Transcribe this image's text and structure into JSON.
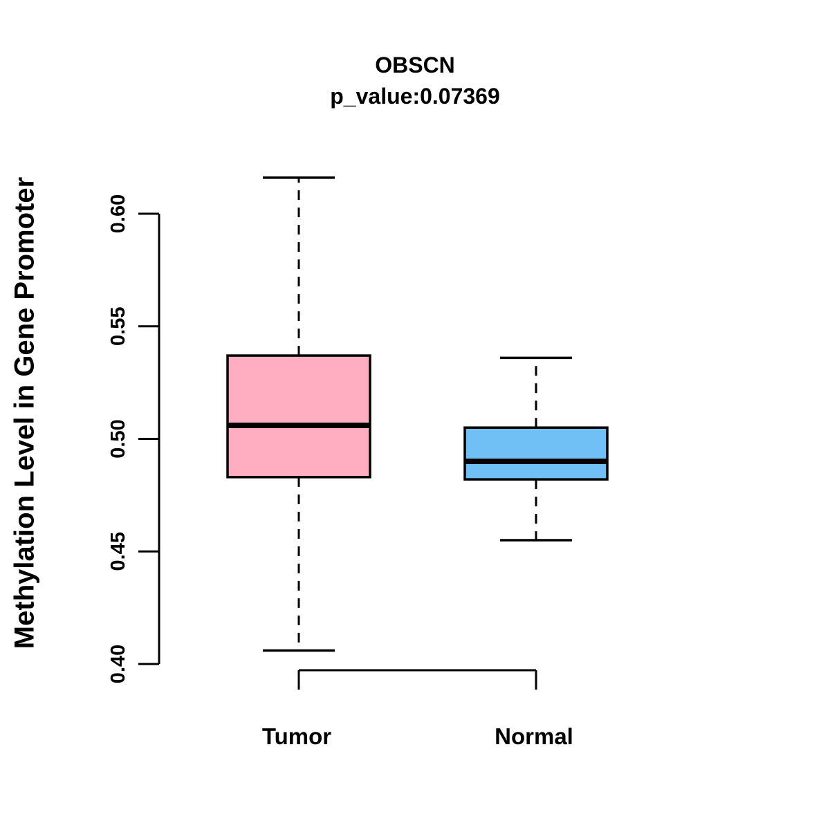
{
  "title": "OBSCN",
  "subtitle": "p_value:0.07369",
  "y_axis_label": "Methylation Level in Gene Promoter",
  "colors": {
    "tumor_fill": "#FFAEC1",
    "normal_fill": "#70BFF5",
    "line": "#000000",
    "background": "#FFFFFF"
  },
  "chart_data": {
    "type": "boxplot",
    "title": "OBSCN",
    "subtitle": "p_value:0.07369",
    "xlabel": "",
    "ylabel": "Methylation Level in Gene Promoter",
    "ylim": [
      0.39,
      0.62
    ],
    "axis_range": [
      0.4,
      0.6
    ],
    "grid": false,
    "legend": "none",
    "yticks": [
      {
        "label": "0.40",
        "value": 0.4
      },
      {
        "label": "0.45",
        "value": 0.45
      },
      {
        "label": "0.50",
        "value": 0.5
      },
      {
        "label": "0.55",
        "value": 0.55
      },
      {
        "label": "0.60",
        "value": 0.6
      }
    ],
    "groups": [
      {
        "label": "Tumor",
        "fill": "#FFAEC1",
        "whisker_low": 0.406,
        "q1": 0.483,
        "median": 0.506,
        "q3": 0.537,
        "whisker_high": 0.616
      },
      {
        "label": "Normal",
        "fill": "#70BFF5",
        "whisker_low": 0.455,
        "q1": 0.482,
        "median": 0.49,
        "q3": 0.505,
        "whisker_high": 0.536
      }
    ]
  }
}
